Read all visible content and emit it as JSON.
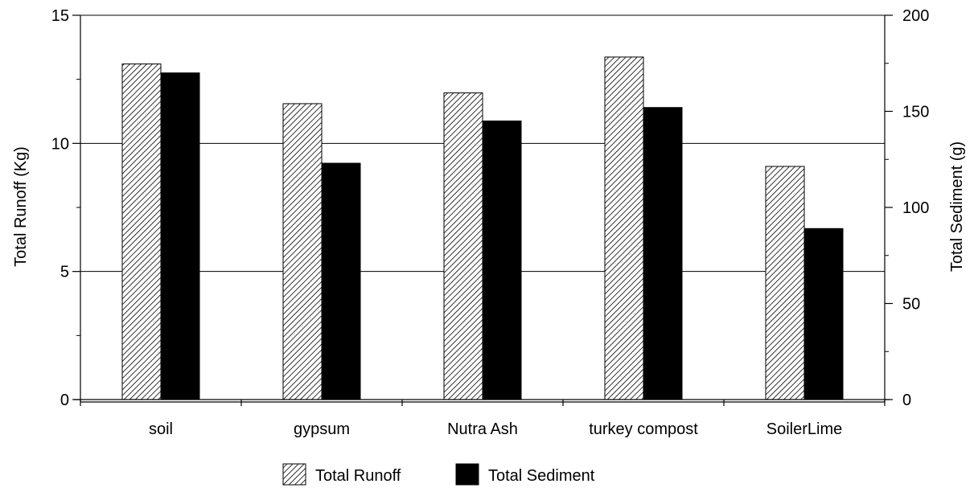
{
  "chart_data": {
    "type": "bar",
    "categories": [
      "soil",
      "gypsum",
      "Nutra Ash",
      "turkey compost",
      "SoilerLime"
    ],
    "series": [
      {
        "name": "Total Runoff",
        "axis": "left",
        "pattern": "diagonal-hatch",
        "values": [
          13.1,
          11.55,
          11.97,
          13.37,
          9.1
        ]
      },
      {
        "name": "Total Sediment",
        "axis": "right",
        "color": "#000000",
        "values": [
          170,
          123,
          145,
          152,
          89
        ]
      }
    ],
    "ylabel": "Total Runoff (Kg)",
    "y2label": "Total Sediment  (g)",
    "ylim": [
      0,
      15
    ],
    "y2lim": [
      0,
      200
    ],
    "yticks": [
      "0",
      "5",
      "10",
      "15"
    ],
    "y2ticks": [
      "0",
      "50",
      "100",
      "150",
      "200"
    ],
    "grid": true,
    "legend_position": "bottom-center"
  }
}
